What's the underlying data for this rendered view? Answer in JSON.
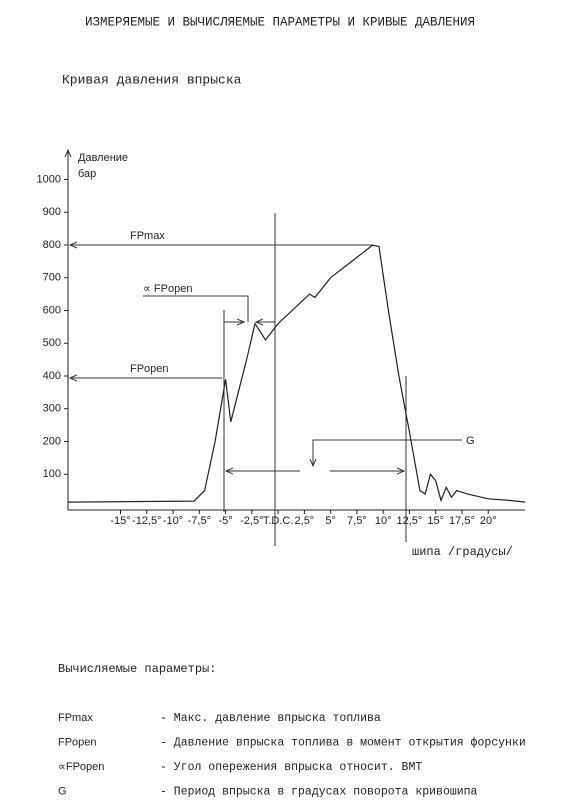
{
  "header": {
    "title": "ИЗМЕРЯЕМЫЕ И ВЫЧИСЛЯЕМЫЕ ПАРАМЕТРЫ И КРИВЫЕ ДАВЛЕНИЯ",
    "subtitle": "Кривая давления впрыска"
  },
  "chart_data": {
    "type": "line",
    "color": "#222",
    "y_label": [
      "Давление",
      "бар"
    ],
    "x_label": "шипа /градусы/",
    "annotations": {
      "fp_max": "FPmax",
      "fp_open": "FPopen",
      "alpha_fp_open": "∝ FPopen",
      "g": "G"
    },
    "x": [
      -20,
      -8,
      -7,
      -6,
      -5,
      -4.5,
      -3,
      -2.2,
      -1.2,
      0,
      2,
      3,
      3.5,
      5,
      7,
      9,
      9.6,
      10.5,
      11.5,
      12.5,
      13.5,
      14,
      14.5,
      15,
      15.5,
      16,
      16.5,
      17,
      18,
      20,
      22,
      23.5
    ],
    "y": [
      15,
      18,
      50,
      200,
      390,
      260,
      450,
      560,
      510,
      560,
      620,
      650,
      640,
      700,
      750,
      800,
      795,
      600,
      400,
      230,
      50,
      40,
      100,
      80,
      20,
      60,
      30,
      50,
      40,
      25,
      20,
      15
    ],
    "xlim": [
      -20,
      23.5
    ],
    "ylim": [
      0,
      1090
    ],
    "xticks": [
      {
        "value": -15,
        "label": "-15°"
      },
      {
        "value": -12.5,
        "label": "-12,5°"
      },
      {
        "value": -10,
        "label": "-10°"
      },
      {
        "value": -7.5,
        "label": "-7,5°"
      },
      {
        "value": -5,
        "label": "-5°"
      },
      {
        "value": -2.5,
        "label": "-2,5°"
      },
      {
        "value": 0,
        "label": "T.D.C."
      },
      {
        "value": 2.5,
        "label": "2,5°"
      },
      {
        "value": 5,
        "label": "5°"
      },
      {
        "value": 7.5,
        "label": "7,5°"
      },
      {
        "value": 10,
        "label": "10°"
      },
      {
        "value": 12.5,
        "label": "12,5°"
      },
      {
        "value": 15,
        "label": "15°"
      },
      {
        "value": 17.5,
        "label": "17,5°"
      },
      {
        "value": 20,
        "label": "20°"
      }
    ],
    "yticks": [
      100,
      200,
      300,
      400,
      500,
      600,
      700,
      800,
      900,
      1000
    ]
  },
  "parameters": {
    "heading": "Вычисляемые параметры:",
    "items": [
      [
        "FPmax",
        "- Макс. давление впрыска топлива"
      ],
      [
        "FPopen",
        "- Давление впрыска топлива в момент открытия форсунки"
      ],
      [
        "∝FPopen",
        "- Угол опережения впрыска относит. ВМТ"
      ],
      [
        "G",
        "- Период впрыска в градусах поворота кривошипа"
      ]
    ]
  }
}
